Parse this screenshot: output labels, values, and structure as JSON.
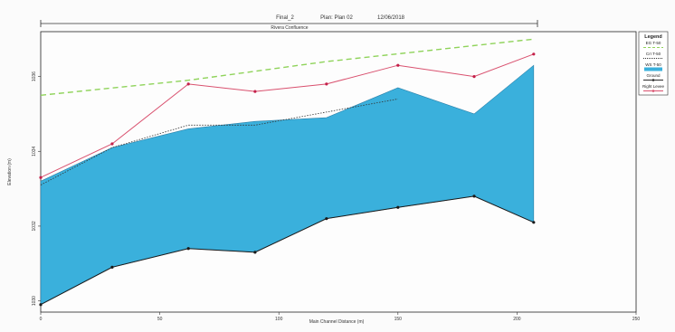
{
  "header": {
    "title": "Final_2",
    "plan": "Plan: Plan 02",
    "date": "12/06/2018",
    "reach_label": "Rivera Confluence"
  },
  "legend": {
    "title": "Legend",
    "items": [
      {
        "label": "EG T-50",
        "color": "#8fd35a",
        "style": "dashed"
      },
      {
        "label": "CrI T-50",
        "color": "#333333",
        "style": "dotted"
      },
      {
        "label": "WS T-50",
        "color": "#3ab0dc",
        "style": "fill"
      },
      {
        "label": "Ground",
        "color": "#2a2a2a",
        "style": "solid-marker"
      },
      {
        "label": "Right Levee",
        "color": "#d9506e",
        "style": "solid-marker"
      }
    ]
  },
  "chart_data": {
    "type": "line",
    "title": "Final_2",
    "xlabel": "Main Channel Distance (m)",
    "ylabel": "Elevation (m)",
    "xlim": [
      0,
      250
    ],
    "ylim": [
      1029.7,
      1037.2
    ],
    "x_ticks": [
      "0",
      "50",
      "100",
      "150",
      "200",
      "250"
    ],
    "y_ticks": [
      "1030",
      "1032",
      "1034",
      "1036"
    ],
    "series": [
      {
        "name": "EG T-50",
        "color": "#8fd35a",
        "x": [
          0,
          62,
          120,
          207
        ],
        "y": [
          1035.5,
          1035.9,
          1036.4,
          1037.0
        ]
      },
      {
        "name": "CrI T-50",
        "color": "#333333",
        "x": [
          0,
          30,
          62,
          90,
          150
        ],
        "y": [
          1033.1,
          1034.1,
          1034.7,
          1034.7,
          1035.4
        ]
      },
      {
        "name": "WS T-50",
        "color": "#3ab0dc",
        "x": [
          0,
          30,
          62,
          90,
          120,
          150,
          182,
          207
        ],
        "y": [
          1033.2,
          1034.1,
          1034.6,
          1034.8,
          1034.9,
          1035.7,
          1035.0,
          1036.3
        ]
      },
      {
        "name": "Ground",
        "color": "#2a2a2a",
        "x": [
          0,
          30,
          62,
          90,
          120,
          150,
          182,
          207
        ],
        "y": [
          1029.9,
          1030.9,
          1031.4,
          1031.3,
          1032.2,
          1032.5,
          1032.8,
          1032.1
        ]
      },
      {
        "name": "Right Levee",
        "color": "#d9506e",
        "x": [
          0,
          30,
          62,
          90,
          120,
          150,
          182,
          207
        ],
        "y": [
          1033.3,
          1034.2,
          1035.8,
          1035.6,
          1035.8,
          1036.3,
          1036.0,
          1036.6
        ]
      }
    ]
  }
}
